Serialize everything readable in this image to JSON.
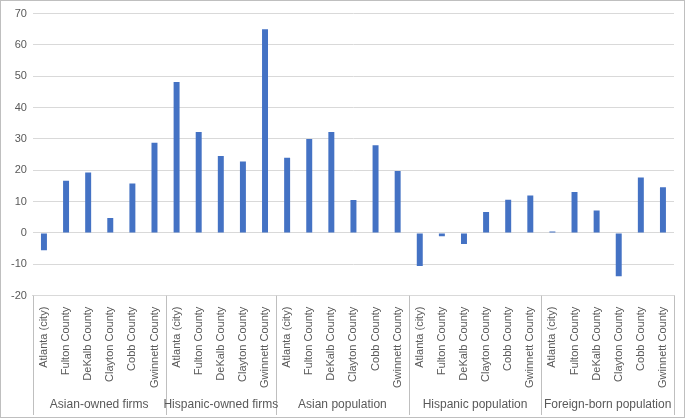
{
  "chart_data": {
    "type": "bar",
    "color": "#4472c4",
    "grid": true,
    "ylim": [
      -20,
      70
    ],
    "yticks": [
      -20,
      -10,
      0,
      10,
      20,
      30,
      40,
      50,
      60,
      70
    ],
    "groups": [
      {
        "name": "Asian-owned firms",
        "categories": [
          "Atlanta (city)",
          "Fulton County",
          "DeKalb County",
          "Clayton County",
          "Cobb County",
          "Gwinnett County"
        ],
        "values": [
          -5.5,
          16.7,
          19.3,
          4.8,
          15.8,
          28.8
        ]
      },
      {
        "name": "Hispanic-owned firms",
        "categories": [
          "Atlanta (city)",
          "Fulton County",
          "DeKalb County",
          "Clayton County",
          "Gwinnett County"
        ],
        "values": [
          48.2,
          32.2,
          24.6,
          22.8,
          65
        ]
      },
      {
        "name": "Asian population",
        "categories": [
          "Atlanta (city)",
          "Fulton County",
          "DeKalb County",
          "Clayton County",
          "Cobb County",
          "Gwinnett County"
        ],
        "values": [
          24,
          30,
          32.2,
          10.5,
          28,
          19.8
        ]
      },
      {
        "name": "Hispanic population",
        "categories": [
          "Atlanta (city)",
          "Fulton County",
          "DeKalb County",
          "Clayton County",
          "Cobb County",
          "Gwinnett County"
        ],
        "values": [
          -10.5,
          -1,
          -3.5,
          6.7,
          10.6,
          12
        ]
      },
      {
        "name": "Foreign-born population",
        "categories": [
          "Atlanta (city)",
          "Fulton County",
          "DeKalb County",
          "Clayton County",
          "Cobb County",
          "Gwinnett County"
        ],
        "values": [
          0.5,
          13.1,
          7.2,
          -13.8,
          17.7,
          14.6
        ]
      }
    ]
  }
}
